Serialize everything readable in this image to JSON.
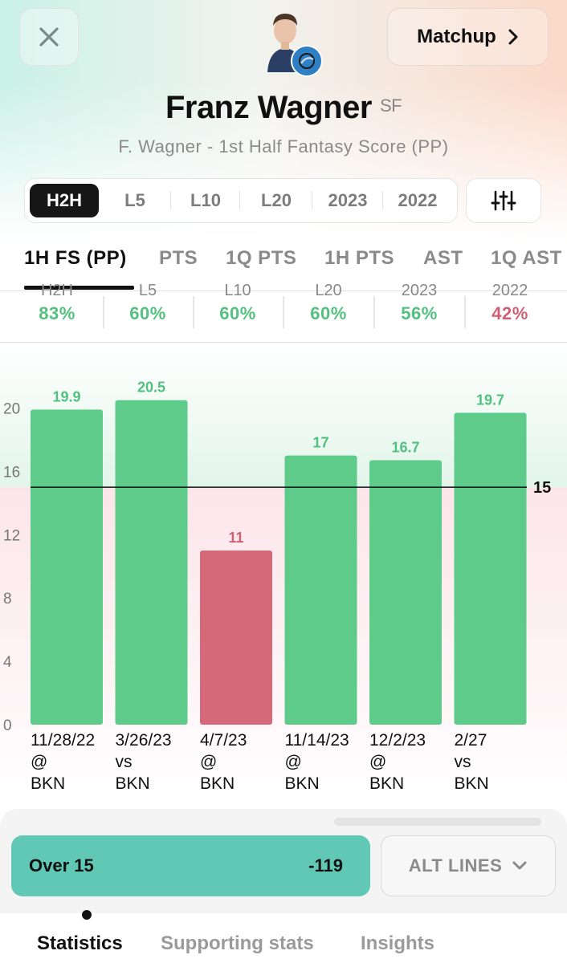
{
  "header": {
    "close_icon": "close-icon",
    "matchup_label": "Matchup",
    "player_name": "Franz Wagner",
    "player_position": "SF",
    "subtitle": "F. Wagner - 1st Half Fantasy Score (PP)",
    "team_badge_color": "#2f7fc4"
  },
  "range_tabs": [
    {
      "label": "H2H",
      "active": true
    },
    {
      "label": "L5"
    },
    {
      "label": "L10"
    },
    {
      "label": "L20"
    },
    {
      "label": "2023"
    },
    {
      "label": "2022"
    }
  ],
  "stat_tabs": [
    {
      "label": "1H FS (PP)",
      "active": true
    },
    {
      "label": "PTS"
    },
    {
      "label": "1Q PTS"
    },
    {
      "label": "1H PTS"
    },
    {
      "label": "AST"
    },
    {
      "label": "1Q AST"
    }
  ],
  "hit_rates": [
    {
      "label": "H2H",
      "value": "83%",
      "status": "good"
    },
    {
      "label": "L5",
      "value": "60%",
      "status": "good"
    },
    {
      "label": "L10",
      "value": "60%",
      "status": "good"
    },
    {
      "label": "L20",
      "value": "60%",
      "status": "good"
    },
    {
      "label": "2023",
      "value": "56%",
      "status": "good"
    },
    {
      "label": "2022",
      "value": "42%",
      "status": "bad"
    }
  ],
  "colors": {
    "good": "#5ecb8a",
    "bad": "#d5697a",
    "good_text": "#52c07f",
    "bad_text": "#cf5f73",
    "over_button": "#61c8b6"
  },
  "chart_data": {
    "type": "bar",
    "categories": [
      {
        "date": "11/28/22",
        "loc": "@",
        "opp": "BKN"
      },
      {
        "date": "3/26/23",
        "loc": "vs",
        "opp": "BKN"
      },
      {
        "date": "4/7/23",
        "loc": "@",
        "opp": "BKN"
      },
      {
        "date": "11/14/23",
        "loc": "@",
        "opp": "BKN"
      },
      {
        "date": "12/2/23",
        "loc": "@",
        "opp": "BKN"
      },
      {
        "date": "2/27",
        "loc": "vs",
        "opp": "BKN"
      }
    ],
    "values": [
      19.9,
      20.5,
      11,
      17,
      16.7,
      19.7
    ],
    "value_labels": [
      "19.9",
      "20.5",
      "11",
      "17",
      "16.7",
      "19.7"
    ],
    "line": 15,
    "line_label": "15",
    "ylim": [
      0,
      22
    ],
    "yticks": [
      0,
      4,
      8,
      12,
      16,
      20
    ]
  },
  "bet": {
    "over_label": "Over 15",
    "over_odds": "-119",
    "alt_lines_label": "ALT LINES"
  },
  "bottom_nav": [
    {
      "label": "Statistics",
      "active": true
    },
    {
      "label": "Supporting stats"
    },
    {
      "label": "Insights"
    }
  ]
}
